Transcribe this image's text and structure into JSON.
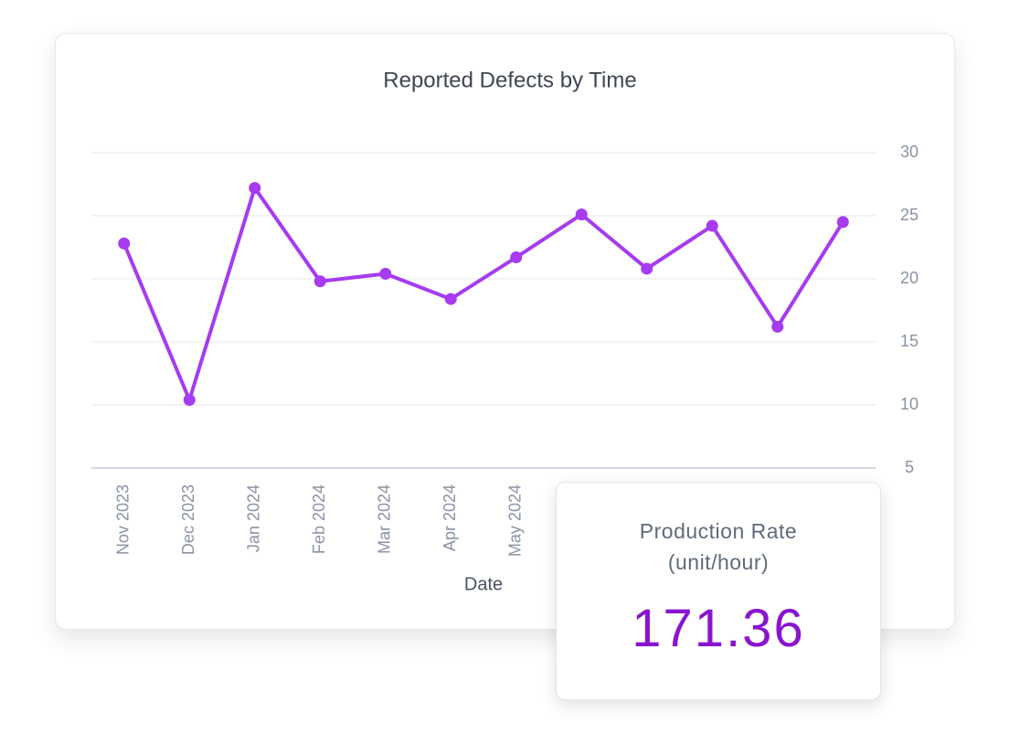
{
  "chart_data": {
    "type": "line",
    "title": "Reported Defects by Time",
    "x_label": "Date",
    "categories": [
      "Nov 2023",
      "Dec 2023",
      "Jan 2024",
      "Feb 2024",
      "Mar 2024",
      "Apr 2024",
      "May 2024",
      null,
      null,
      null,
      null,
      null
    ],
    "series": [
      {
        "name": "Reported Defects",
        "color": "#a63bf0",
        "values": [
          22.8,
          10.4,
          27.2,
          19.8,
          20.4,
          18.4,
          21.7,
          25.1,
          20.8,
          24.2,
          16.2,
          24.5
        ]
      }
    ],
    "ylim": [
      5,
      30
    ],
    "yticks": [
      5,
      10,
      15,
      20,
      25,
      30
    ],
    "grid": true,
    "y_axis_side": "right"
  },
  "kpi": {
    "label": "Production Rate (unit/hour)",
    "value": 171.36
  }
}
